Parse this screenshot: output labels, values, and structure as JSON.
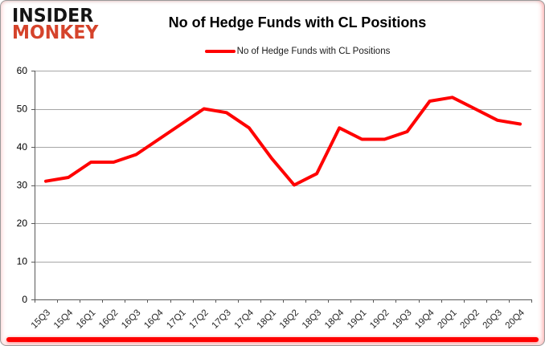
{
  "brand": {
    "line1": "INSIDER",
    "line2": "MONKEY"
  },
  "header": {
    "title": "No of Hedge Funds with CL Positions"
  },
  "legend": {
    "label": "No of Hedge Funds with CL Positions"
  },
  "chart_data": {
    "type": "line",
    "title": "No of Hedge Funds with CL Positions",
    "categories": [
      "15Q3",
      "15Q4",
      "16Q1",
      "16Q2",
      "16Q3",
      "16Q4",
      "17Q1",
      "17Q2",
      "17Q3",
      "17Q4",
      "18Q1",
      "18Q2",
      "18Q3",
      "18Q4",
      "19Q1",
      "19Q2",
      "19Q3",
      "19Q4",
      "20Q1",
      "20Q2",
      "20Q3",
      "20Q4"
    ],
    "series": [
      {
        "name": "No of Hedge Funds with CL Positions",
        "values": [
          31,
          32,
          36,
          36,
          38,
          42,
          46,
          50,
          49,
          45,
          37,
          30,
          33,
          45,
          42,
          42,
          44,
          52,
          53,
          50,
          47,
          46
        ]
      }
    ],
    "xlabel": "",
    "ylabel": "",
    "ylim": [
      0,
      60
    ],
    "ytick_interval": 10,
    "grid": true,
    "legend_position": "top-center"
  },
  "colors": {
    "line": "#ff0000",
    "logo_red": "#d5432b",
    "grid": "#a6a6a6",
    "axis": "#595959",
    "tick_label": "#262626",
    "accent_bar": "#ff0000"
  }
}
